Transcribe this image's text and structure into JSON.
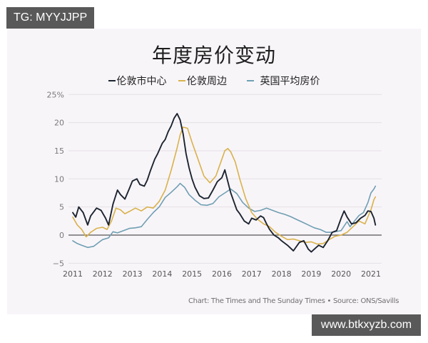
{
  "watermarks": {
    "top": "TG: MYYJJPP",
    "bottom": "www.btkxyzb.com"
  },
  "chart_data": {
    "type": "line",
    "title": "年度房价变动",
    "xlabel": "",
    "ylabel": "",
    "ylim": [
      -5,
      25
    ],
    "xlim": [
      2011,
      2021.2
    ],
    "y_ticks": [
      "25%",
      "20",
      "15",
      "10",
      "5",
      "0",
      "−5"
    ],
    "y_tick_values": [
      25,
      20,
      15,
      10,
      5,
      0,
      -5
    ],
    "x_ticks": [
      "2011",
      "2012",
      "2013",
      "2014",
      "2015",
      "2016",
      "2017",
      "2018",
      "2019",
      "2020",
      "2021"
    ],
    "grid": true,
    "legend_position": "top",
    "source": "Chart: The Times and The Sunday Times • Source: ONS/Savills",
    "colors": {
      "central_london": "#1c2430",
      "outer_london": "#d9b24a",
      "uk_average": "#6f9fb2"
    },
    "series": [
      {
        "name": "伦敦市中心",
        "key": "central_london",
        "x": [
          2011.0,
          2011.1,
          2011.2,
          2011.35,
          2011.5,
          2011.6,
          2011.8,
          2011.95,
          2012.1,
          2012.2,
          2012.35,
          2012.5,
          2012.6,
          2012.75,
          2012.9,
          2013.0,
          2013.15,
          2013.25,
          2013.4,
          2013.5,
          2013.6,
          2013.75,
          2013.85,
          2014.0,
          2014.1,
          2014.2,
          2014.3,
          2014.4,
          2014.5,
          2014.6,
          2014.7,
          2014.8,
          2014.9,
          2015.0,
          2015.1,
          2015.25,
          2015.4,
          2015.55,
          2015.7,
          2015.85,
          2016.0,
          2016.1,
          2016.2,
          2016.3,
          2016.4,
          2016.5,
          2016.6,
          2016.75,
          2016.9,
          2017.0,
          2017.15,
          2017.3,
          2017.4,
          2017.5,
          2017.6,
          2017.75,
          2017.9,
          2018.0,
          2018.2,
          2018.4,
          2018.6,
          2018.75,
          2018.9,
          2019.0,
          2019.1,
          2019.25,
          2019.4,
          2019.55,
          2019.7,
          2019.85,
          2020.0,
          2020.1,
          2020.2,
          2020.35,
          2020.5,
          2020.65,
          2020.8,
          2020.9,
          2021.0,
          2021.1,
          2021.15
        ],
        "values": [
          4.0,
          3.2,
          5.0,
          4.0,
          1.8,
          3.4,
          4.8,
          4.4,
          3.0,
          1.8,
          5.5,
          8.0,
          7.2,
          6.4,
          8.3,
          9.6,
          10.0,
          9.0,
          8.7,
          9.8,
          11.4,
          13.5,
          14.5,
          16.3,
          17.0,
          18.4,
          19.4,
          20.8,
          21.6,
          20.5,
          18.0,
          14.5,
          12.0,
          10.0,
          8.5,
          7.0,
          6.5,
          6.6,
          8.0,
          9.5,
          10.2,
          11.6,
          9.5,
          7.5,
          6.0,
          4.5,
          3.8,
          2.5,
          2.0,
          3.0,
          2.7,
          3.4,
          3.1,
          2.0,
          1.0,
          0.0,
          -0.5,
          -1.0,
          -1.8,
          -2.8,
          -1.3,
          -1.0,
          -2.5,
          -3.0,
          -2.5,
          -1.8,
          -2.2,
          -1.0,
          0.5,
          0.8,
          3.0,
          4.3,
          3.2,
          2.0,
          2.2,
          3.0,
          3.5,
          4.3,
          4.2,
          3.0,
          1.8
        ]
      },
      {
        "name": "伦敦周边",
        "key": "outer_london",
        "x": [
          2011.0,
          2011.15,
          2011.3,
          2011.45,
          2011.6,
          2011.8,
          2012.0,
          2012.15,
          2012.3,
          2012.45,
          2012.6,
          2012.75,
          2012.9,
          2013.1,
          2013.3,
          2013.5,
          2013.7,
          2013.9,
          2014.1,
          2014.3,
          2014.5,
          2014.6,
          2014.7,
          2014.85,
          2015.0,
          2015.2,
          2015.4,
          2015.6,
          2015.8,
          2016.0,
          2016.1,
          2016.2,
          2016.3,
          2016.45,
          2016.6,
          2016.8,
          2017.0,
          2017.2,
          2017.4,
          2017.6,
          2017.8,
          2018.0,
          2018.2,
          2018.4,
          2018.6,
          2018.8,
          2019.0,
          2019.2,
          2019.4,
          2019.6,
          2019.8,
          2020.0,
          2020.2,
          2020.4,
          2020.6,
          2020.8,
          2021.0,
          2021.1,
          2021.15
        ],
        "values": [
          3.2,
          1.8,
          1.0,
          -0.3,
          0.5,
          1.2,
          1.4,
          1.0,
          2.5,
          4.8,
          4.5,
          3.8,
          4.2,
          4.8,
          4.3,
          5.0,
          4.8,
          6.0,
          8.0,
          11.5,
          15.5,
          17.8,
          19.2,
          19.0,
          16.5,
          13.5,
          10.5,
          9.3,
          10.5,
          13.5,
          15.0,
          15.4,
          14.8,
          13.0,
          10.0,
          6.5,
          4.0,
          2.8,
          2.0,
          1.5,
          0.5,
          -0.2,
          -0.8,
          -0.7,
          -1.0,
          -1.3,
          -1.2,
          -1.6,
          -1.5,
          -0.8,
          -0.2,
          0.0,
          0.5,
          1.5,
          2.5,
          2.0,
          4.5,
          6.3,
          6.8
        ]
      },
      {
        "name": "英国平均房价",
        "key": "uk_average",
        "x": [
          2011.0,
          2011.15,
          2011.3,
          2011.5,
          2011.7,
          2011.9,
          2012.0,
          2012.2,
          2012.35,
          2012.5,
          2012.7,
          2012.9,
          2013.1,
          2013.3,
          2013.5,
          2013.7,
          2013.9,
          2014.1,
          2014.3,
          2014.5,
          2014.6,
          2014.75,
          2014.9,
          2015.1,
          2015.3,
          2015.5,
          2015.7,
          2015.9,
          2016.1,
          2016.3,
          2016.5,
          2016.7,
          2016.9,
          2017.1,
          2017.3,
          2017.5,
          2017.7,
          2017.9,
          2018.1,
          2018.3,
          2018.5,
          2018.7,
          2018.9,
          2019.1,
          2019.3,
          2019.5,
          2019.7,
          2019.9,
          2020.0,
          2020.2,
          2020.3,
          2020.45,
          2020.6,
          2020.75,
          2020.9,
          2021.0,
          2021.1,
          2021.15
        ],
        "values": [
          -1.0,
          -1.5,
          -1.8,
          -2.2,
          -2.0,
          -1.2,
          -0.8,
          -0.5,
          0.6,
          0.4,
          0.8,
          1.2,
          1.3,
          1.5,
          2.8,
          4.0,
          5.0,
          6.7,
          7.6,
          8.6,
          9.2,
          8.5,
          7.2,
          6.2,
          5.4,
          5.3,
          5.6,
          6.8,
          7.5,
          8.2,
          7.4,
          5.8,
          4.8,
          4.2,
          4.4,
          4.8,
          4.4,
          4.0,
          3.7,
          3.3,
          2.8,
          2.3,
          1.8,
          1.3,
          1.0,
          0.5,
          0.5,
          0.7,
          0.8,
          2.4,
          1.5,
          2.5,
          3.5,
          4.0,
          5.8,
          7.5,
          8.2,
          8.7
        ]
      }
    ]
  },
  "legend": [
    {
      "label": "伦敦市中心",
      "key": "central_london"
    },
    {
      "label": "伦敦周边",
      "key": "outer_london"
    },
    {
      "label": "英国平均房价",
      "key": "uk_average"
    }
  ]
}
